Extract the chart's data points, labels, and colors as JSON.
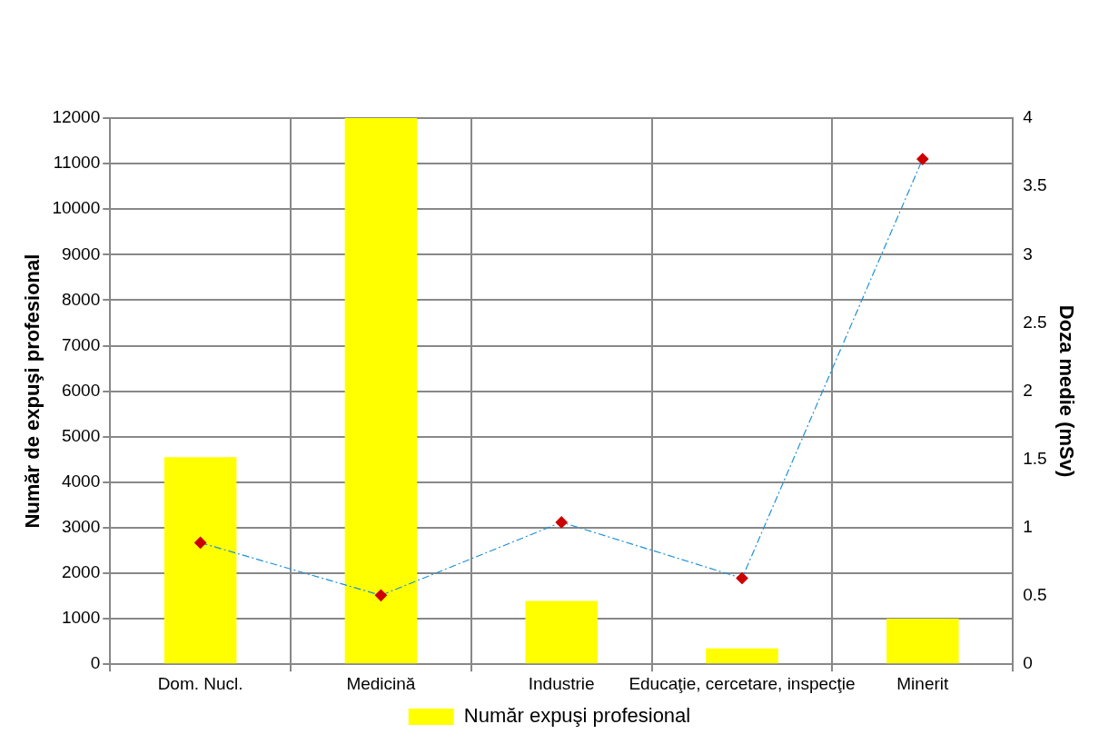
{
  "chart_data": {
    "type": "bar",
    "ylabel": "Număr de expuşi profesional",
    "y2label": "Doza medie (mSv)",
    "categories": [
      "Dom. Nucl.",
      "Medicină",
      "Industrie",
      "Educaţie, cercetare, inspecţie",
      "Minerit"
    ],
    "series": [
      {
        "name": "Număr expuşi profesional",
        "color": "#ffff00",
        "values": [
          4550,
          12000,
          1390,
          350,
          1000
        ]
      },
      {
        "type": "line",
        "axis": "y2",
        "color": "#1e90d8",
        "marker": "diamond",
        "line_style": "dashed",
        "values": [
          0.89,
          0.505,
          1.04,
          0.63,
          3.7
        ]
      }
    ],
    "ylim": [
      0,
      12000
    ],
    "yticks": [
      0,
      1000,
      2000,
      3000,
      4000,
      5000,
      6000,
      7000,
      8000,
      9000,
      10000,
      11000,
      12000
    ],
    "y2lim": [
      0,
      4
    ],
    "y2ticks": [
      0,
      0.5,
      1,
      1.5,
      2,
      2.5,
      3,
      3.5,
      4
    ],
    "grid": true,
    "legend": "bottom"
  }
}
